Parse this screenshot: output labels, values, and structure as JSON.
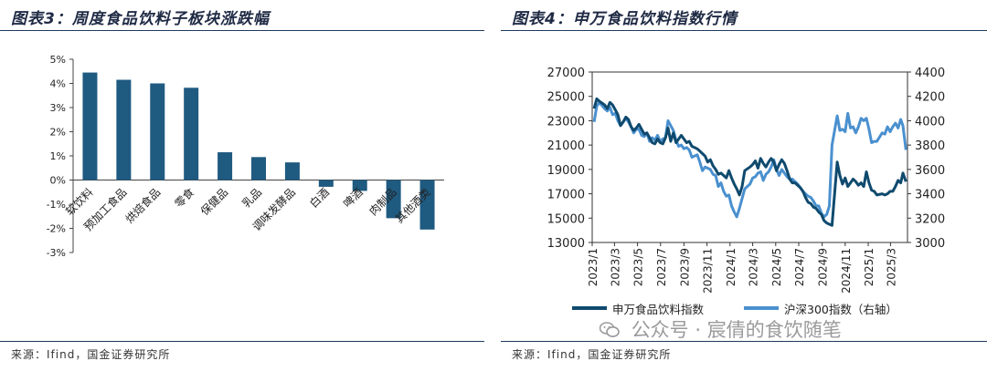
{
  "left": {
    "title": "图表3：周度食品饮料子板块涨跌幅",
    "source": "来源：Ifind，国金证券研究所",
    "chart_data": {
      "type": "bar",
      "categories": [
        "软饮料",
        "预加工食品",
        "烘焙食品",
        "零食",
        "保健品",
        "乳品",
        "调味发酵品",
        "白酒",
        "啤酒",
        "肉制品",
        "其他酒类"
      ],
      "values": [
        4.45,
        4.15,
        4.0,
        3.82,
        1.15,
        0.95,
        0.73,
        -0.28,
        -0.45,
        -1.58,
        -2.05
      ],
      "ylim": [
        -3,
        5
      ],
      "yticks": [
        "-3%",
        "-2%",
        "-1%",
        "0%",
        "1%",
        "2%",
        "3%",
        "4%",
        "5%"
      ],
      "bar_color": "#1f5a80"
    }
  },
  "right": {
    "title": "图表4：申万食品饮料指数行情",
    "source": "来源：Ifind，国金证券研究所",
    "watermark": "公众号 · 宸倩的食饮随笔",
    "chart_data": {
      "type": "line",
      "x_ticks": [
        "2023/1",
        "2023/3",
        "2023/5",
        "2023/7",
        "2023/9",
        "2023/11",
        "2024/1",
        "2024/3",
        "2024/5",
        "2024/7",
        "2024/9",
        "2024/11",
        "2025/1",
        "2025/3"
      ],
      "y_left": {
        "min": 13000,
        "max": 27000,
        "ticks": [
          "13000",
          "15000",
          "17000",
          "19000",
          "21000",
          "23000",
          "25000",
          "27000"
        ]
      },
      "y_right": {
        "min": 3000,
        "max": 4400,
        "ticks": [
          "3000",
          "3200",
          "3400",
          "3600",
          "3800",
          "4000",
          "4200",
          "4400"
        ]
      },
      "series": [
        {
          "name": "申万食品饮料指数",
          "axis": "left",
          "color": "#0f4a6e",
          "x": [
            "2023/1/6",
            "2023/1/13",
            "2023/1/20",
            "2023/2/3",
            "2023/2/10",
            "2023/2/17",
            "2023/2/24",
            "2023/3/3",
            "2023/3/10",
            "2023/3/17",
            "2023/3/24",
            "2023/3/31",
            "2023/4/7",
            "2023/4/14",
            "2023/4/21",
            "2023/4/28",
            "2023/5/5",
            "2023/5/12",
            "2023/5/19",
            "2023/5/26",
            "2023/6/2",
            "2023/6/9",
            "2023/6/16",
            "2023/6/23",
            "2023/6/30",
            "2023/7/7",
            "2023/7/14",
            "2023/7/21",
            "2023/7/28",
            "2023/8/4",
            "2023/8/11",
            "2023/8/18",
            "2023/8/25",
            "2023/9/1",
            "2023/9/8",
            "2023/9/15",
            "2023/9/22",
            "2023/10/6",
            "2023/10/13",
            "2023/10/20",
            "2023/10/27",
            "2023/11/3",
            "2023/11/10",
            "2023/11/17",
            "2023/11/24",
            "2023/12/1",
            "2023/12/8",
            "2023/12/15",
            "2023/12/22",
            "2023/12/29",
            "2024/1/5",
            "2024/1/12",
            "2024/1/19",
            "2024/1/26",
            "2024/2/2",
            "2024/2/9",
            "2024/2/23",
            "2024/3/1",
            "2024/3/8",
            "2024/3/15",
            "2024/3/22",
            "2024/3/29",
            "2024/4/5",
            "2024/4/12",
            "2024/4/19",
            "2024/4/26",
            "2024/5/3",
            "2024/5/10",
            "2024/5/17",
            "2024/5/24",
            "2024/5/31",
            "2024/6/7",
            "2024/6/14",
            "2024/6/21",
            "2024/6/28",
            "2024/7/5",
            "2024/7/12",
            "2024/7/19",
            "2024/7/26",
            "2024/8/2",
            "2024/8/9",
            "2024/8/16",
            "2024/8/23",
            "2024/8/30",
            "2024/9/6",
            "2024/9/13",
            "2024/9/20",
            "2024/9/27",
            "2024/10/11",
            "2024/10/18",
            "2024/10/25",
            "2024/11/1",
            "2024/11/8",
            "2024/11/15",
            "2024/11/22",
            "2024/11/29",
            "2024/12/6",
            "2024/12/13",
            "2024/12/20",
            "2024/12/27",
            "2025/1/3",
            "2025/1/10",
            "2025/1/17",
            "2025/1/24",
            "2025/2/7",
            "2025/2/14",
            "2025/2/21",
            "2025/2/28",
            "2025/3/7",
            "2025/3/14",
            "2025/3/21",
            "2025/3/28",
            "2025/4/3",
            "2025/4/11"
          ],
          "values": [
            24000,
            24800,
            24600,
            24300,
            24000,
            24500,
            24300,
            23900,
            23500,
            22600,
            22900,
            23300,
            23100,
            22500,
            22200,
            22400,
            22700,
            22300,
            21900,
            22000,
            21600,
            21200,
            21100,
            21500,
            21200,
            21100,
            21600,
            22400,
            21300,
            22000,
            21200,
            21500,
            21800,
            21500,
            21200,
            21300,
            20900,
            20700,
            20500,
            20300,
            20100,
            19600,
            19800,
            19300,
            19000,
            18600,
            18700,
            18500,
            18300,
            18900,
            18300,
            17800,
            17400,
            16900,
            17600,
            18900,
            19200,
            19400,
            19700,
            19100,
            19900,
            19500,
            19200,
            19600,
            19900,
            19600,
            18900,
            19400,
            19800,
            19500,
            18900,
            18200,
            17900,
            17900,
            17700,
            17500,
            17200,
            16700,
            16300,
            16200,
            15900,
            15800,
            15500,
            15300,
            14800,
            14600,
            14500,
            14400,
            19600,
            18500,
            17800,
            18300,
            17600,
            17900,
            18200,
            18000,
            17700,
            17900,
            17600,
            18800,
            17900,
            17300,
            17200,
            16900,
            17000,
            16900,
            17000,
            17200,
            17200,
            17600,
            18100,
            17900,
            18700,
            18000
          ]
        },
        {
          "name": "沪深300指数（右轴）",
          "axis": "right",
          "color": "#4a90cf",
          "x": [
            "2023/1/6",
            "2023/1/13",
            "2023/1/20",
            "2023/2/3",
            "2023/2/10",
            "2023/2/17",
            "2023/2/24",
            "2023/3/3",
            "2023/3/10",
            "2023/3/17",
            "2023/3/24",
            "2023/3/31",
            "2023/4/7",
            "2023/4/14",
            "2023/4/21",
            "2023/4/28",
            "2023/5/5",
            "2023/5/12",
            "2023/5/19",
            "2023/5/26",
            "2023/6/2",
            "2023/6/9",
            "2023/6/16",
            "2023/6/23",
            "2023/6/30",
            "2023/7/7",
            "2023/7/14",
            "2023/7/21",
            "2023/7/28",
            "2023/8/4",
            "2023/8/11",
            "2023/8/18",
            "2023/8/25",
            "2023/9/1",
            "2023/9/8",
            "2023/9/15",
            "2023/9/22",
            "2023/10/6",
            "2023/10/13",
            "2023/10/20",
            "2023/10/27",
            "2023/11/3",
            "2023/11/10",
            "2023/11/17",
            "2023/11/24",
            "2023/12/1",
            "2023/12/8",
            "2023/12/15",
            "2023/12/22",
            "2023/12/29",
            "2024/1/5",
            "2024/1/12",
            "2024/1/19",
            "2024/1/26",
            "2024/2/2",
            "2024/2/9",
            "2024/2/23",
            "2024/3/1",
            "2024/3/8",
            "2024/3/15",
            "2024/3/22",
            "2024/3/29",
            "2024/4/5",
            "2024/4/12",
            "2024/4/19",
            "2024/4/26",
            "2024/5/3",
            "2024/5/10",
            "2024/5/17",
            "2024/5/24",
            "2024/5/31",
            "2024/6/7",
            "2024/6/14",
            "2024/6/21",
            "2024/6/28",
            "2024/7/5",
            "2024/7/12",
            "2024/7/19",
            "2024/7/26",
            "2024/8/2",
            "2024/8/9",
            "2024/8/16",
            "2024/8/23",
            "2024/8/30",
            "2024/9/6",
            "2024/9/13",
            "2024/9/20",
            "2024/9/27",
            "2024/10/11",
            "2024/10/18",
            "2024/10/25",
            "2024/11/1",
            "2024/11/8",
            "2024/11/15",
            "2024/11/22",
            "2024/11/29",
            "2024/12/6",
            "2024/12/13",
            "2024/12/20",
            "2024/12/27",
            "2025/1/3",
            "2025/1/10",
            "2025/1/17",
            "2025/1/24",
            "2025/2/7",
            "2025/2/14",
            "2025/2/21",
            "2025/2/28",
            "2025/3/7",
            "2025/3/14",
            "2025/3/21",
            "2025/3/28",
            "2025/4/3",
            "2025/4/11"
          ],
          "values": [
            3990,
            4120,
            4150,
            4100,
            4080,
            4110,
            4050,
            4060,
            4000,
            3960,
            3990,
            4020,
            3990,
            3950,
            3900,
            3930,
            3930,
            3880,
            3870,
            3900,
            3830,
            3860,
            3840,
            3880,
            3830,
            3850,
            3860,
            4000,
            3960,
            3920,
            3840,
            3790,
            3800,
            3770,
            3780,
            3760,
            3700,
            3720,
            3660,
            3590,
            3620,
            3610,
            3600,
            3560,
            3550,
            3460,
            3490,
            3420,
            3380,
            3390,
            3300,
            3250,
            3210,
            3280,
            3360,
            3440,
            3480,
            3530,
            3540,
            3570,
            3580,
            3510,
            3560,
            3580,
            3620,
            3680,
            3600,
            3550,
            3600,
            3570,
            3540,
            3520,
            3520,
            3500,
            3480,
            3450,
            3420,
            3400,
            3380,
            3370,
            3340,
            3300,
            3300,
            3240,
            3210,
            3230,
            3300,
            3800,
            4040,
            3920,
            3930,
            3910,
            4060,
            3940,
            3950,
            3900,
            3950,
            4020,
            4000,
            4020,
            3930,
            3820,
            3830,
            3830,
            3900,
            3890,
            3950,
            3910,
            3950,
            3980,
            3940,
            4010,
            3960,
            3760
          ]
        }
      ]
    }
  }
}
